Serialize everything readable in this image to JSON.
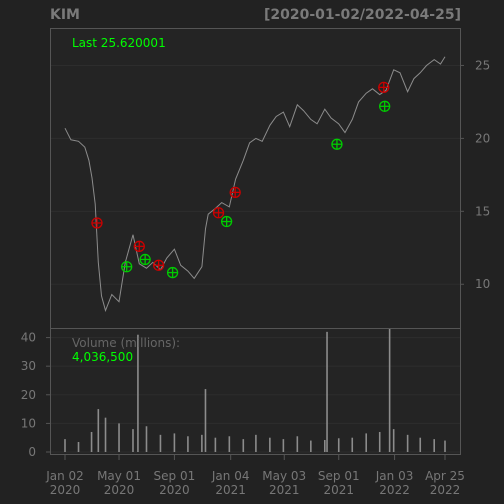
{
  "header": {
    "symbol": "KIM",
    "range": "[2020-01-02/2022-04-25]"
  },
  "colors": {
    "background": "#222222",
    "frame": "#555555",
    "grid": "#2d2d2d",
    "price": "#8c8c8c",
    "up_marker": "#00cc00",
    "down_marker": "#cc0000",
    "accent_text": "#00ff00"
  },
  "chart_data": {
    "type": "line",
    "title": "KIM",
    "subtitle": "[2020-01-02/2022-04-25]",
    "last_label": "Last 25.620001",
    "price_axis": {
      "ticks": [
        10,
        15,
        20,
        25
      ],
      "labels": [
        "10",
        "15",
        "20",
        "25"
      ],
      "ylim": [
        7.0,
        27.5
      ]
    },
    "price_series": {
      "dates": [
        "2020-01-02",
        "2020-01-15",
        "2020-02-01",
        "2020-02-15",
        "2020-02-24",
        "2020-03-02",
        "2020-03-09",
        "2020-03-16",
        "2020-03-23",
        "2020-04-01",
        "2020-04-15",
        "2020-05-01",
        "2020-05-15",
        "2020-06-01",
        "2020-06-08",
        "2020-06-15",
        "2020-07-01",
        "2020-07-15",
        "2020-08-01",
        "2020-08-15",
        "2020-09-01",
        "2020-09-15",
        "2020-10-01",
        "2020-10-15",
        "2020-11-01",
        "2020-11-09",
        "2020-11-15",
        "2020-12-01",
        "2020-12-15",
        "2021-01-01",
        "2021-01-15",
        "2021-02-01",
        "2021-02-15",
        "2021-03-01",
        "2021-03-15",
        "2021-04-01",
        "2021-04-15",
        "2021-05-01",
        "2021-05-15",
        "2021-06-01",
        "2021-06-15",
        "2021-07-01",
        "2021-07-15",
        "2021-08-01",
        "2021-08-15",
        "2021-09-01",
        "2021-09-15",
        "2021-10-01",
        "2021-10-15",
        "2021-11-01",
        "2021-11-15",
        "2021-12-01",
        "2021-12-15",
        "2022-01-01",
        "2022-01-15",
        "2022-02-01",
        "2022-02-15",
        "2022-03-01",
        "2022-03-15",
        "2022-04-01",
        "2022-04-15",
        "2022-04-25"
      ],
      "values": [
        20.7,
        19.9,
        19.8,
        19.4,
        18.5,
        17.3,
        15.5,
        11.5,
        9.2,
        8.2,
        9.3,
        8.8,
        11.5,
        13.4,
        12.4,
        11.4,
        11.1,
        11.5,
        11.0,
        11.8,
        12.4,
        11.3,
        10.9,
        10.4,
        11.2,
        13.8,
        14.8,
        15.2,
        15.6,
        15.3,
        17.2,
        18.5,
        19.7,
        20.0,
        19.8,
        20.9,
        21.5,
        21.8,
        20.8,
        22.3,
        21.9,
        21.3,
        21.0,
        22.0,
        21.4,
        21.0,
        20.4,
        21.3,
        22.5,
        23.1,
        23.4,
        23.0,
        23.3,
        24.7,
        24.5,
        23.2,
        24.1,
        24.5,
        25.0,
        25.4,
        25.1,
        25.6
      ]
    },
    "down_markers": [
      {
        "date": "2020-03-13",
        "value": 14.2
      },
      {
        "date": "2020-06-15",
        "value": 12.6
      },
      {
        "date": "2020-07-28",
        "value": 11.3
      },
      {
        "date": "2020-12-08",
        "value": 14.9
      },
      {
        "date": "2021-01-14",
        "value": 16.3
      },
      {
        "date": "2021-12-10",
        "value": 23.5
      }
    ],
    "up_markers": [
      {
        "date": "2020-05-18",
        "value": 11.2
      },
      {
        "date": "2020-06-28",
        "value": 11.7
      },
      {
        "date": "2020-08-28",
        "value": 10.8
      },
      {
        "date": "2020-12-26",
        "value": 14.3
      },
      {
        "date": "2021-08-28",
        "value": 19.6
      },
      {
        "date": "2021-12-12",
        "value": 22.2
      }
    ],
    "volume": {
      "label": "Volume (millions):",
      "last_value": "4,036,500",
      "axis": {
        "ticks": [
          0,
          10,
          20,
          30,
          40
        ],
        "labels": [
          "0",
          "10",
          "20",
          "30",
          "40"
        ],
        "ylim": [
          0,
          43
        ]
      },
      "dates": [
        "2020-01-02",
        "2020-02-01",
        "2020-03-01",
        "2020-03-16",
        "2020-04-01",
        "2020-05-01",
        "2020-06-01",
        "2020-06-12",
        "2020-07-01",
        "2020-08-01",
        "2020-09-01",
        "2020-10-01",
        "2020-11-01",
        "2020-11-09",
        "2020-12-01",
        "2021-01-01",
        "2021-02-01",
        "2021-03-01",
        "2021-04-01",
        "2021-05-01",
        "2021-06-01",
        "2021-07-01",
        "2021-08-01",
        "2021-08-06",
        "2021-09-01",
        "2021-10-01",
        "2021-11-01",
        "2021-12-01",
        "2021-12-23",
        "2022-01-01",
        "2022-02-01",
        "2022-03-01",
        "2022-04-01",
        "2022-04-25"
      ],
      "values": [
        4.5,
        3.5,
        7.0,
        15.0,
        12.0,
        10.0,
        8.0,
        41.0,
        9.0,
        6.0,
        6.5,
        5.5,
        6.0,
        22.0,
        5.0,
        5.5,
        4.5,
        6.0,
        5.0,
        4.5,
        5.5,
        4.0,
        4.2,
        42.0,
        4.8,
        5.0,
        6.5,
        7.0,
        43.0,
        8.0,
        6.0,
        5.0,
        4.5,
        4.0
      ]
    },
    "x_axis": {
      "ticks": [
        {
          "date": "2020-01-02",
          "top": "Jan 02",
          "bottom": "2020"
        },
        {
          "date": "2020-05-01",
          "top": "May 01",
          "bottom": "2020"
        },
        {
          "date": "2020-09-01",
          "top": "Sep 01",
          "bottom": "2020"
        },
        {
          "date": "2021-01-04",
          "top": "Jan 04",
          "bottom": "2021"
        },
        {
          "date": "2021-05-03",
          "top": "May 03",
          "bottom": "2021"
        },
        {
          "date": "2021-09-01",
          "top": "Sep 01",
          "bottom": "2021"
        },
        {
          "date": "2022-01-03",
          "top": "Jan 03",
          "bottom": "2022"
        },
        {
          "date": "2022-04-25",
          "top": "Apr 25",
          "bottom": "2022"
        }
      ],
      "range": [
        "2020-01-02",
        "2022-04-25"
      ]
    }
  }
}
